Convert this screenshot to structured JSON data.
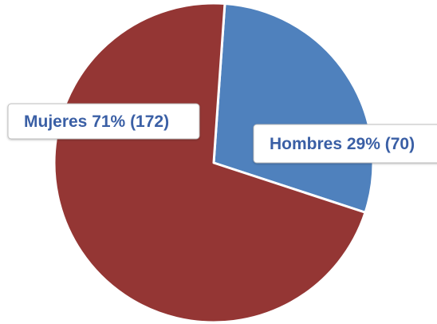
{
  "chart_data": {
    "type": "pie",
    "categories": [
      "Hombres",
      "Mujeres"
    ],
    "values": [
      70,
      172
    ],
    "percentages": [
      29,
      71
    ],
    "colors": [
      "#4F81BD",
      "#943634"
    ],
    "data_labels": [
      "Hombres 29% (70)",
      "Mujeres 71% (172)"
    ],
    "label_color": "#3A5FA5",
    "start_angle_deg": 4,
    "legend": "none"
  }
}
